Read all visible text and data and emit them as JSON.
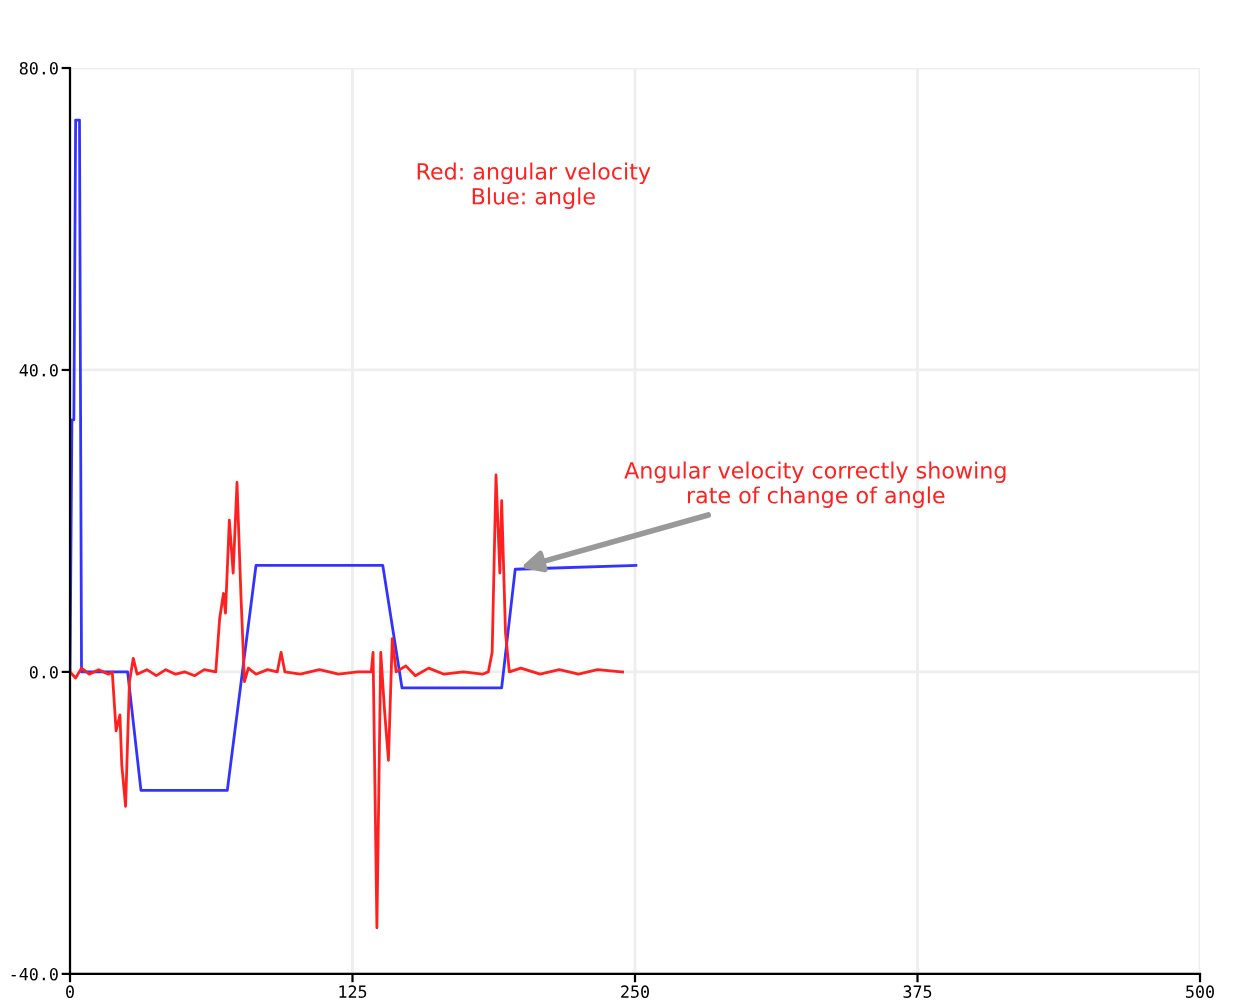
{
  "chart_data": {
    "type": "line",
    "xlim": [
      0,
      500
    ],
    "ylim": [
      -40,
      80
    ],
    "xticks": [
      0,
      125,
      250,
      375,
      500
    ],
    "yticks": [
      {
        "value": -40,
        "label": "-40.0"
      },
      {
        "value": 0,
        "label": "0.0"
      },
      {
        "value": 40,
        "label": "40.0"
      },
      {
        "value": 80,
        "label": "80.0"
      }
    ],
    "grid": true,
    "marker": "none",
    "line_style": "solid",
    "series": [
      {
        "color": "#3333ff",
        "x": [
          0,
          0.85,
          1.7,
          2.5,
          4.2,
          5.1,
          25.5,
          31.4,
          69.6,
          82.3,
          138.4,
          146.9,
          191,
          197,
          250.4
        ],
        "values": [
          0,
          33.4,
          33.4,
          73.1,
          73.1,
          0,
          0,
          -15.7,
          -15.7,
          14.1,
          14.1,
          -2.1,
          -2.1,
          13.6,
          14.1
        ]
      },
      {
        "color": "#ff2020",
        "x": [
          0,
          2.5,
          5.1,
          8.5,
          12.7,
          17,
          18.7,
          20.4,
          22.1,
          22.9,
          24.6,
          26.3,
          28,
          29.7,
          34,
          38.2,
          42.4,
          46.7,
          50.9,
          55.2,
          59.4,
          64.5,
          66.2,
          67.9,
          68.8,
          70.5,
          72.2,
          73.9,
          75.6,
          77.2,
          78.9,
          82.3,
          87.4,
          91.7,
          93.4,
          95.1,
          101.9,
          110.4,
          118.8,
          127.3,
          133.3,
          134.1,
          135.8,
          137.5,
          139.2,
          140.9,
          142.6,
          144.3,
          148.6,
          152.8,
          158.7,
          165.5,
          174,
          182.5,
          185.1,
          186.8,
          188.5,
          190.2,
          191,
          192.7,
          194.4,
          199.5,
          208,
          216.5,
          225,
          233.4,
          244.5
        ],
        "values": [
          0,
          -0.8,
          0.5,
          -0.3,
          0.3,
          -0.3,
          0,
          -7.8,
          -5.7,
          -12.3,
          -17.8,
          -1.3,
          1.8,
          -0.3,
          0.3,
          -0.5,
          0.3,
          -0.3,
          0,
          -0.5,
          0.3,
          0,
          7,
          10.4,
          7.8,
          20.1,
          13.1,
          25.1,
          10.4,
          -1.3,
          0.5,
          -0.3,
          0.3,
          0,
          2.6,
          0,
          -0.3,
          0.3,
          -0.3,
          0,
          0,
          2.6,
          -33.9,
          2.6,
          -5.2,
          -11.7,
          4.4,
          0,
          0.8,
          -0.5,
          0.5,
          -0.3,
          0,
          -0.3,
          0,
          2.6,
          26.1,
          13.1,
          22.7,
          5.2,
          0,
          0.5,
          -0.3,
          0.3,
          -0.3,
          0.3,
          0
        ]
      }
    ],
    "annotations": [
      "Red: angular velocity\nBlue: angle",
      {
        "text": "Angular velocity correctly showing\nrate of change of angle",
        "x": 197,
        "y": 13.6
      }
    ]
  }
}
